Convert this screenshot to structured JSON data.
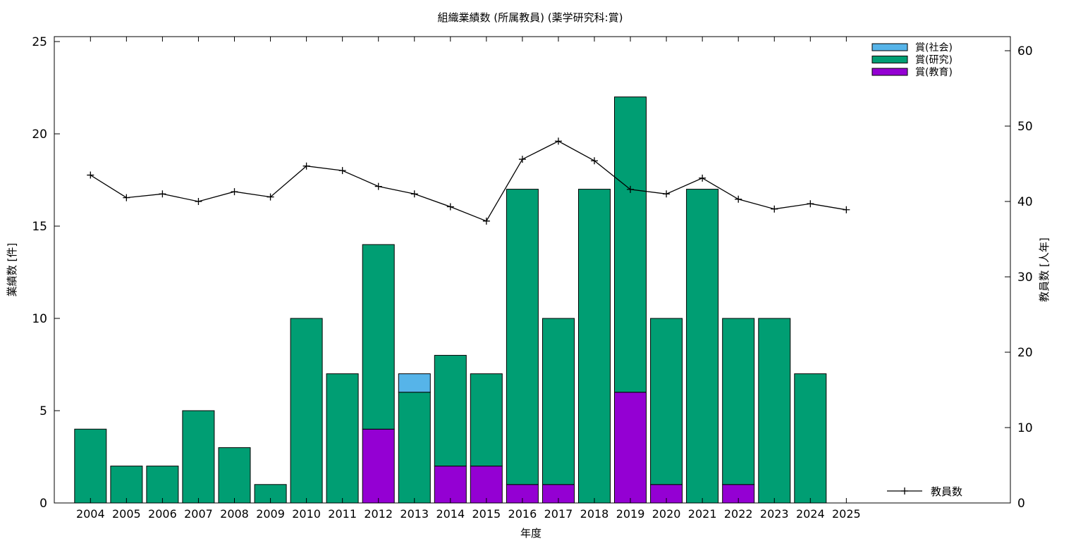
{
  "chart_data": {
    "type": "bar",
    "stacked": true,
    "title": "組織業績数 (所属教員) (薬学研究科:賞)",
    "xlabel": "年度",
    "ylabel": "業績数 [件]",
    "y2label": "教員数 [人年]",
    "categories": [
      "2004",
      "2005",
      "2006",
      "2007",
      "2008",
      "2009",
      "2010",
      "2011",
      "2012",
      "2013",
      "2014",
      "2015",
      "2016",
      "2017",
      "2018",
      "2019",
      "2020",
      "2021",
      "2022",
      "2023",
      "2024",
      "2025"
    ],
    "ylim": [
      0,
      25
    ],
    "yticks": [
      "0",
      "5",
      "10",
      "15",
      "20",
      "25"
    ],
    "y2lim": [
      0,
      60
    ],
    "y2ticks": [
      "0",
      "10",
      "20",
      "30",
      "40",
      "50",
      "60"
    ],
    "grid": false,
    "legend_position": "top-right",
    "series": [
      {
        "name": "賞(教育)",
        "color": "#9400d3",
        "values": [
          0,
          0,
          0,
          0,
          0,
          0,
          0,
          0,
          4,
          0,
          2,
          2,
          1,
          1,
          0,
          6,
          1,
          0,
          1,
          0,
          0,
          0
        ]
      },
      {
        "name": "賞(研究)",
        "color": "#009e73",
        "values": [
          4,
          2,
          2,
          5,
          3,
          1,
          10,
          7,
          10,
          6,
          6,
          5,
          16,
          9,
          17,
          16,
          9,
          17,
          9,
          10,
          7,
          0
        ]
      },
      {
        "name": "賞(社会)",
        "color": "#56b4e9",
        "values": [
          0,
          0,
          0,
          0,
          0,
          0,
          0,
          0,
          0,
          1,
          0,
          0,
          0,
          0,
          0,
          0,
          0,
          0,
          0,
          0,
          0,
          0
        ]
      }
    ],
    "line_series": {
      "name": "教員数",
      "axis": "y2",
      "color": "#000000",
      "values": [
        43.5,
        40.5,
        41.0,
        40.0,
        41.3,
        40.6,
        44.7,
        44.1,
        42.0,
        41.0,
        39.3,
        37.4,
        45.6,
        48.0,
        45.4,
        41.6,
        41.0,
        43.1,
        40.3,
        39.0,
        39.7,
        38.9
      ]
    }
  }
}
